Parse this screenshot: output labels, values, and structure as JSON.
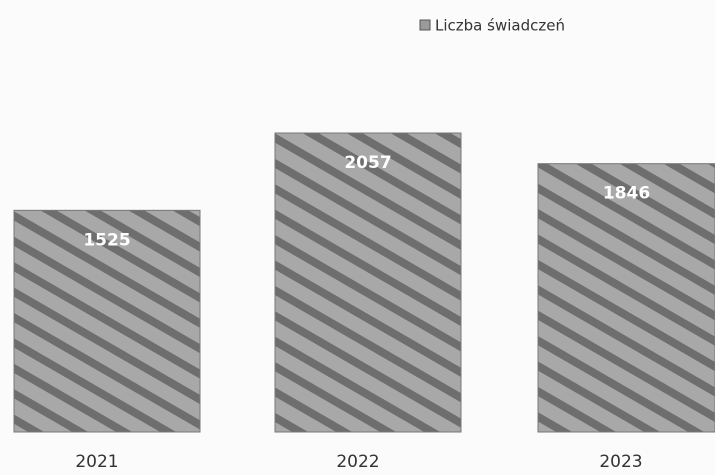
{
  "chart_data": {
    "type": "bar",
    "categories": [
      "2021",
      "2022",
      "2023"
    ],
    "series": [
      {
        "name": "Liczba świadczeń",
        "color": "#9a9a9a",
        "values": [
          1525,
          2057,
          1846
        ]
      }
    ],
    "legend": "top"
  }
}
